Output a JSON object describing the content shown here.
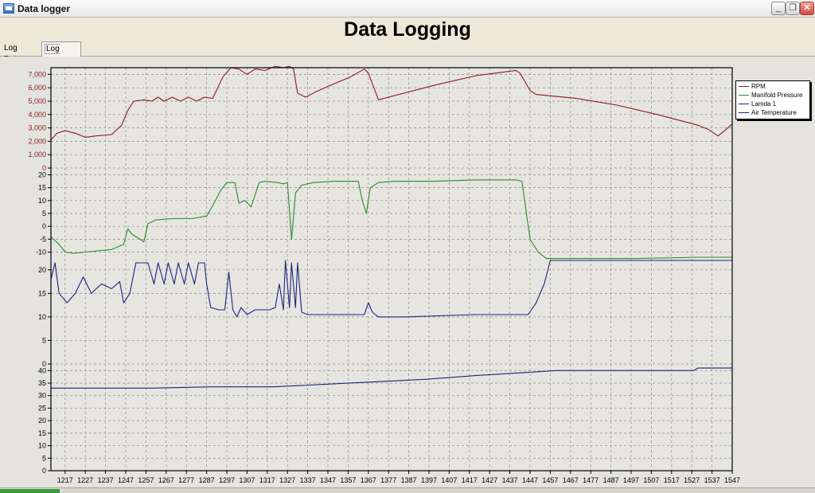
{
  "window": {
    "title": "Data logger",
    "minimize": "_",
    "restore": "❐",
    "close": "✕"
  },
  "page_title": "Data Logging",
  "tabs": [
    {
      "label": "Log Data"
    },
    {
      "label": "Log Chart",
      "selected": true
    }
  ],
  "chart_data": {
    "type": "line",
    "xlabel": "",
    "x_ticks": [
      1217,
      1227,
      1237,
      1247,
      1257,
      1267,
      1277,
      1287,
      1297,
      1307,
      1317,
      1327,
      1337,
      1347,
      1357,
      1367,
      1377,
      1387,
      1397,
      1407,
      1417,
      1427,
      1437,
      1447,
      1457,
      1467,
      1477,
      1487,
      1497,
      1507,
      1517,
      1527,
      1537,
      1547
    ],
    "xlim": [
      1210,
      1547
    ],
    "grid": true,
    "legend_position": "right",
    "panels": [
      {
        "name": "RPM",
        "color": "#8b1a1a",
        "ylim": [
          0,
          7500
        ],
        "y_ticks": [
          "0",
          "1,000",
          "2,000",
          "3,000",
          "4,000",
          "5,000",
          "6,000",
          "7,000"
        ],
        "y_tick_values": [
          0,
          1000,
          2000,
          3000,
          4000,
          5000,
          6000,
          7000
        ],
        "points": [
          [
            1210,
            2100
          ],
          [
            1213,
            2600
          ],
          [
            1217,
            2800
          ],
          [
            1222,
            2600
          ],
          [
            1227,
            2300
          ],
          [
            1232,
            2400
          ],
          [
            1240,
            2500
          ],
          [
            1245,
            3200
          ],
          [
            1248,
            4300
          ],
          [
            1251,
            5000
          ],
          [
            1256,
            5100
          ],
          [
            1260,
            5000
          ],
          [
            1263,
            5300
          ],
          [
            1266,
            5000
          ],
          [
            1270,
            5300
          ],
          [
            1274,
            5000
          ],
          [
            1278,
            5300
          ],
          [
            1282,
            5000
          ],
          [
            1286,
            5300
          ],
          [
            1290,
            5200
          ],
          [
            1295,
            6800
          ],
          [
            1299,
            7500
          ],
          [
            1303,
            7400
          ],
          [
            1307,
            7000
          ],
          [
            1311,
            7400
          ],
          [
            1316,
            7300
          ],
          [
            1321,
            7600
          ],
          [
            1325,
            7500
          ],
          [
            1328,
            7600
          ],
          [
            1330,
            7400
          ],
          [
            1332,
            5600
          ],
          [
            1336,
            5300
          ],
          [
            1341,
            5700
          ],
          [
            1350,
            6300
          ],
          [
            1358,
            6800
          ],
          [
            1365,
            7400
          ],
          [
            1367,
            7100
          ],
          [
            1372,
            5100
          ],
          [
            1400,
            6200
          ],
          [
            1420,
            6900
          ],
          [
            1440,
            7300
          ],
          [
            1442,
            7100
          ],
          [
            1447,
            5800
          ],
          [
            1450,
            5500
          ],
          [
            1470,
            5200
          ],
          [
            1490,
            4700
          ],
          [
            1510,
            4000
          ],
          [
            1530,
            3200
          ],
          [
            1535,
            2900
          ],
          [
            1540,
            2400
          ],
          [
            1544,
            2900
          ],
          [
            1547,
            3300
          ]
        ]
      },
      {
        "name": "Manifold Pressure",
        "color": "#2e8b2e",
        "ylim": [
          -12,
          22
        ],
        "y_ticks": [
          "-10",
          "-5",
          "0",
          "5",
          "10",
          "15",
          "20"
        ],
        "y_tick_values": [
          -10,
          -5,
          0,
          5,
          10,
          15,
          20
        ],
        "points": [
          [
            1210,
            -4
          ],
          [
            1214,
            -7
          ],
          [
            1217,
            -10
          ],
          [
            1221,
            -10.5
          ],
          [
            1227,
            -10
          ],
          [
            1240,
            -9
          ],
          [
            1246,
            -7
          ],
          [
            1248,
            -1
          ],
          [
            1250,
            -3
          ],
          [
            1254,
            -5
          ],
          [
            1256,
            -6
          ],
          [
            1258,
            1
          ],
          [
            1262,
            2.5
          ],
          [
            1270,
            3
          ],
          [
            1280,
            3
          ],
          [
            1287,
            4
          ],
          [
            1290,
            8
          ],
          [
            1294,
            14
          ],
          [
            1297,
            17
          ],
          [
            1301,
            17
          ],
          [
            1303,
            9
          ],
          [
            1306,
            10
          ],
          [
            1309,
            7.5
          ],
          [
            1313,
            17
          ],
          [
            1316,
            17.5
          ],
          [
            1322,
            17
          ],
          [
            1325,
            16.5
          ],
          [
            1327,
            17
          ],
          [
            1329,
            -5
          ],
          [
            1331,
            13
          ],
          [
            1334,
            16
          ],
          [
            1340,
            17
          ],
          [
            1350,
            17.5
          ],
          [
            1362,
            17.5
          ],
          [
            1364,
            10
          ],
          [
            1366,
            5
          ],
          [
            1368,
            15
          ],
          [
            1372,
            17
          ],
          [
            1380,
            17.5
          ],
          [
            1400,
            17.5
          ],
          [
            1420,
            18
          ],
          [
            1440,
            18
          ],
          [
            1443,
            17.5
          ],
          [
            1447,
            -5
          ],
          [
            1451,
            -10
          ],
          [
            1455,
            -12.5
          ],
          [
            1500,
            -12.5
          ],
          [
            1530,
            -12
          ],
          [
            1547,
            -12
          ]
        ]
      },
      {
        "name": "Lamda 1",
        "color": "#1a237e",
        "ylim": [
          0,
          22
        ],
        "y_ticks": [
          "0",
          "5",
          "10",
          "15",
          "20"
        ],
        "y_tick_values": [
          0,
          5,
          10,
          15,
          20
        ],
        "points": [
          [
            1210,
            18
          ],
          [
            1212,
            21.5
          ],
          [
            1214,
            15
          ],
          [
            1218,
            13
          ],
          [
            1222,
            15
          ],
          [
            1226,
            18.5
          ],
          [
            1230,
            15
          ],
          [
            1235,
            17
          ],
          [
            1240,
            16
          ],
          [
            1244,
            17.5
          ],
          [
            1246,
            13
          ],
          [
            1249,
            15
          ],
          [
            1252,
            21.5
          ],
          [
            1258,
            21.5
          ],
          [
            1261,
            17
          ],
          [
            1263,
            21.5
          ],
          [
            1266,
            17
          ],
          [
            1268,
            21.5
          ],
          [
            1271,
            17
          ],
          [
            1273,
            21.5
          ],
          [
            1276,
            17
          ],
          [
            1278,
            21.5
          ],
          [
            1281,
            17
          ],
          [
            1283,
            21.5
          ],
          [
            1286,
            21.5
          ],
          [
            1287,
            17
          ],
          [
            1289,
            12
          ],
          [
            1293,
            11.5
          ],
          [
            1296,
            11.5
          ],
          [
            1298,
            19.5
          ],
          [
            1300,
            11.5
          ],
          [
            1302,
            10
          ],
          [
            1304,
            12
          ],
          [
            1307,
            10.5
          ],
          [
            1311,
            11.5
          ],
          [
            1318,
            11.5
          ],
          [
            1321,
            12
          ],
          [
            1323,
            17
          ],
          [
            1325,
            11.5
          ],
          [
            1326,
            22
          ],
          [
            1328,
            12
          ],
          [
            1329,
            21.5
          ],
          [
            1331,
            12
          ],
          [
            1332,
            21.5
          ],
          [
            1334,
            11
          ],
          [
            1337,
            10.5
          ],
          [
            1350,
            10.5
          ],
          [
            1365,
            10.5
          ],
          [
            1367,
            13
          ],
          [
            1369,
            11
          ],
          [
            1372,
            10
          ],
          [
            1385,
            10
          ],
          [
            1420,
            10.5
          ],
          [
            1440,
            10.5
          ],
          [
            1446,
            10.5
          ],
          [
            1450,
            13
          ],
          [
            1454,
            17
          ],
          [
            1457,
            22
          ],
          [
            1500,
            22
          ],
          [
            1547,
            22
          ]
        ]
      },
      {
        "name": "Air Temperature",
        "color": "#1a237e",
        "ylim": [
          0,
          42
        ],
        "y_ticks": [
          "0",
          "5",
          "10",
          "15",
          "20",
          "25",
          "30",
          "35",
          "40"
        ],
        "y_tick_values": [
          0,
          5,
          10,
          15,
          20,
          25,
          30,
          35,
          40
        ],
        "points": [
          [
            1210,
            33
          ],
          [
            1260,
            33
          ],
          [
            1290,
            33.5
          ],
          [
            1320,
            33.5
          ],
          [
            1345,
            34.5
          ],
          [
            1370,
            35.5
          ],
          [
            1395,
            36.5
          ],
          [
            1420,
            38
          ],
          [
            1440,
            39
          ],
          [
            1460,
            40
          ],
          [
            1490,
            40
          ],
          [
            1528,
            40
          ],
          [
            1530,
            41
          ],
          [
            1547,
            41
          ]
        ]
      }
    ],
    "legend": [
      "RPM",
      "Manifold Pressure",
      "Lamda 1",
      "Air Temperature"
    ]
  }
}
